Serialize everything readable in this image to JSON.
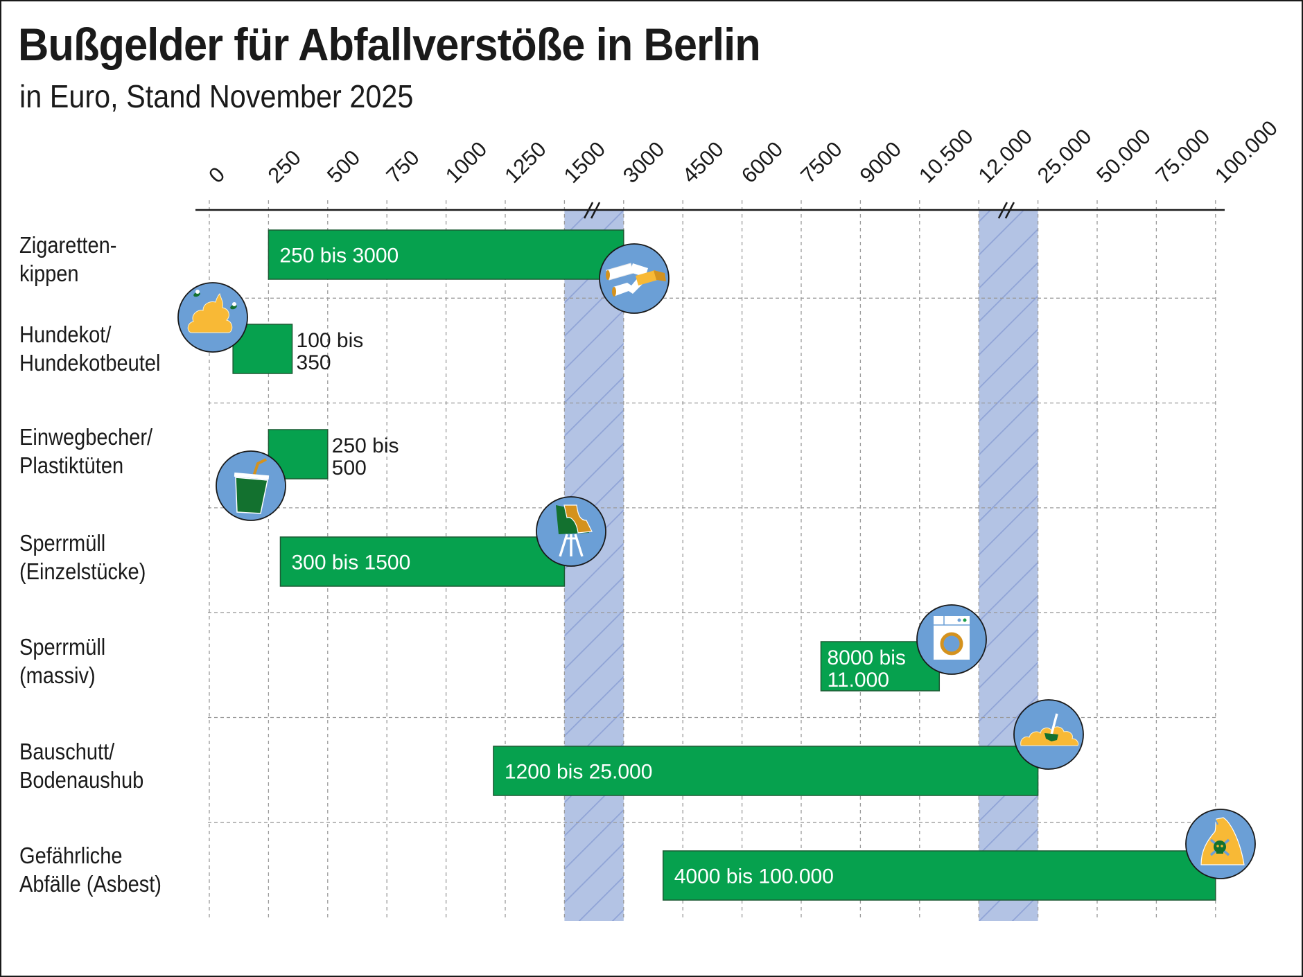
{
  "header": {
    "title": "Bußgelder für Abfallverstöße in Berlin",
    "subtitle": "in Euro, Stand November 2025"
  },
  "colors": {
    "bar": "#06a14e",
    "bar_border": "#1d5a34",
    "break_band": "#b3c3e4",
    "break_hatch": "#8fa3d6",
    "icon_bg": "#6b9fd6",
    "icon_yellow": "#f8b936",
    "icon_dark_green": "#13712f",
    "icon_ochre": "#d4921e",
    "grid": "#9a9a9a"
  },
  "chart_data": {
    "type": "range-bar",
    "title": "Bußgelder für Abfallverstöße in Berlin",
    "subtitle": "in Euro, Stand November 2025",
    "xlabel": "",
    "ylabel": "",
    "x_tick_labels": [
      "0",
      "250",
      "500",
      "750",
      "1000",
      "1250",
      "1500",
      "3000",
      "4500",
      "6000",
      "7500",
      "9000",
      "10.500",
      "12.000",
      "25.000",
      "50.000",
      "75.000",
      "100.000"
    ],
    "x_tick_values": [
      0,
      250,
      500,
      750,
      1000,
      1250,
      1500,
      3000,
      4500,
      6000,
      7500,
      9000,
      10500,
      12000,
      25000,
      50000,
      75000,
      100000
    ],
    "axis_breaks": [
      [
        1500,
        3000
      ],
      [
        12000,
        25000
      ]
    ],
    "xlim": [
      0,
      100000
    ],
    "grid": true,
    "legend": "none",
    "categories": [
      [
        "Zigaretten-",
        "kippen"
      ],
      [
        "Hundekot/",
        "Hundekotbeutel"
      ],
      [
        "Einwegbecher/",
        "Plastiktüten"
      ],
      [
        "Sperrmüll",
        "(Einzelstücke)"
      ],
      [
        "Sperrmüll",
        "(massiv)"
      ],
      [
        "Bauschutt/",
        "Bodenaushub"
      ],
      [
        "Gefährliche",
        "Abfälle (Asbest)"
      ]
    ],
    "ranges": [
      {
        "min": 250,
        "max": 3000,
        "label": [
          "250 bis 3000"
        ],
        "label_position": "inside",
        "icon": "cigarette-butts-icon"
      },
      {
        "min": 100,
        "max": 350,
        "label": [
          "100 bis",
          "350"
        ],
        "label_position": "outside",
        "icon": "dog-poop-icon"
      },
      {
        "min": 250,
        "max": 500,
        "label": [
          "250 bis",
          "500"
        ],
        "label_position": "outside",
        "icon": "disposable-cup-icon"
      },
      {
        "min": 300,
        "max": 1500,
        "label": [
          "300 bis 1500"
        ],
        "label_position": "inside",
        "icon": "chair-icon"
      },
      {
        "min": 8000,
        "max": 11000,
        "label": [
          "8000 bis",
          "11.000"
        ],
        "label_position": "inside",
        "icon": "washing-machine-icon"
      },
      {
        "min": 1200,
        "max": 25000,
        "label": [
          "1200 bis 25.000"
        ],
        "label_position": "inside",
        "icon": "rubble-shovel-icon"
      },
      {
        "min": 4000,
        "max": 100000,
        "label": [
          "4000 bis 100.000"
        ],
        "label_position": "inside",
        "icon": "hazardous-waste-icon"
      }
    ]
  }
}
